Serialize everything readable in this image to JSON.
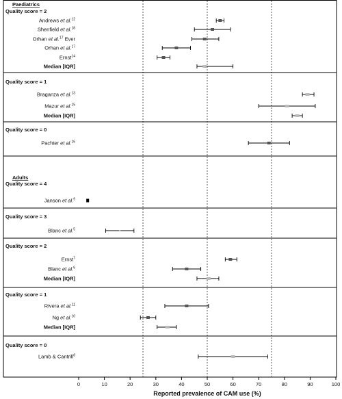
{
  "chart_data": {
    "type": "forest",
    "xlabel": "Reported prevalence of CAM use (%)",
    "xlim": [
      0,
      100
    ],
    "xticks": [
      0,
      10,
      20,
      30,
      40,
      50,
      60,
      70,
      80,
      90,
      100
    ],
    "reference_lines": [
      25,
      50,
      75
    ],
    "groups": [
      {
        "heading": "Paediatrics",
        "section": "Quality score = 2",
        "rows": [
          {
            "name": "Andrews",
            "etal": " et al.",
            "ref": "12",
            "suffix": "",
            "estimate": 55,
            "lower": 53.5,
            "upper": 56.5,
            "marker": "dark"
          },
          {
            "name": "Shenfield",
            "etal": " et al.",
            "ref": "18",
            "suffix": "",
            "estimate": 52,
            "lower": 45,
            "upper": 59,
            "marker": "dark"
          },
          {
            "name": "Orhan",
            "etal": " et al.",
            "ref": "17",
            "suffix": " Ever",
            "estimate": 49,
            "lower": 44,
            "upper": 54.5,
            "marker": "dark"
          },
          {
            "name": "Orhan",
            "etal": " et al.",
            "ref": "17",
            "suffix": "",
            "estimate": 38,
            "lower": 32.5,
            "upper": 43.5,
            "marker": "dark"
          },
          {
            "name": "Ernst",
            "etal": "",
            "ref": "14",
            "suffix": "",
            "estimate": 33,
            "lower": 30.5,
            "upper": 35.5,
            "marker": "dark"
          },
          {
            "name": "Median [IQR]",
            "etal": "",
            "ref": "",
            "suffix": "",
            "estimate": 49,
            "lower": 46,
            "upper": 60,
            "marker": "median"
          }
        ]
      },
      {
        "heading": "",
        "section": "Quality score = 1",
        "rows": [
          {
            "name": "Braganza",
            "etal": " et al.",
            "ref": "13",
            "suffix": "",
            "estimate": 89,
            "lower": 87,
            "upper": 91.5,
            "marker": "light"
          },
          {
            "name": "Mazur",
            "etal": " et al.",
            "ref": "15",
            "suffix": "",
            "estimate": 81,
            "lower": 70,
            "upper": 92,
            "marker": "light"
          },
          {
            "name": "Median [IQR]",
            "etal": "",
            "ref": "",
            "suffix": "",
            "estimate": 85,
            "lower": 83,
            "upper": 87,
            "marker": "median"
          }
        ]
      },
      {
        "heading": "",
        "section": "Quality score = 0",
        "rows": [
          {
            "name": "Pachter",
            "etal": " et al.",
            "ref": "16",
            "suffix": "",
            "estimate": 74,
            "lower": 66,
            "upper": 82,
            "marker": "dark"
          }
        ]
      },
      {
        "heading": "Adults",
        "section": "Quality score = 4",
        "rows": [
          {
            "name": "Janson",
            "etal": " et al.",
            "ref": "9",
            "suffix": "",
            "estimate": 3.5,
            "lower": null,
            "upper": null,
            "marker": "black"
          }
        ]
      },
      {
        "heading": "",
        "section": "Quality score = 3",
        "rows": [
          {
            "name": "Blanc",
            "etal": " et al.",
            "ref": "5",
            "suffix": "",
            "estimate": 16,
            "lower": 10.5,
            "upper": 21.5,
            "marker": "none"
          }
        ]
      },
      {
        "heading": "",
        "section": "Quality score = 2",
        "rows": [
          {
            "name": "Ernst",
            "etal": "",
            "ref": "7",
            "suffix": "",
            "estimate": 59,
            "lower": 57,
            "upper": 61.5,
            "marker": "dark"
          },
          {
            "name": "Blanc",
            "etal": " et al.",
            "ref": "6",
            "suffix": "",
            "estimate": 42,
            "lower": 36.5,
            "upper": 47.5,
            "marker": "dark"
          },
          {
            "name": "Median [IQR]",
            "etal": "",
            "ref": "",
            "suffix": "",
            "estimate": 50.5,
            "lower": 46,
            "upper": 54.5,
            "marker": "median"
          }
        ]
      },
      {
        "heading": "",
        "section": "Quality score = 1",
        "rows": [
          {
            "name": "Rivera",
            "etal": " et al.",
            "ref": "11",
            "suffix": "",
            "estimate": 42,
            "lower": 33.5,
            "upper": 50.5,
            "marker": "dark"
          },
          {
            "name": "Ng",
            "etal": " et al.",
            "ref": "10",
            "suffix": "",
            "estimate": 27,
            "lower": 24,
            "upper": 30,
            "marker": "dark"
          },
          {
            "name": "Median [IQR]",
            "etal": "",
            "ref": "",
            "suffix": "",
            "estimate": 34.5,
            "lower": 30.5,
            "upper": 38,
            "marker": "median"
          }
        ]
      },
      {
        "heading": "",
        "section": "Quality score = 0",
        "rows": [
          {
            "name": "Lamb & Cantrill",
            "etal": "",
            "ref": "8",
            "suffix": "",
            "estimate": 60,
            "lower": 46.5,
            "upper": 73.5,
            "marker": "light"
          }
        ]
      }
    ]
  },
  "colors": {
    "dark_marker": "#555555",
    "light_marker": "#bbbbbb",
    "median_marker": "#bbbbbb",
    "black_marker": "#000000",
    "lines": "#000000"
  }
}
